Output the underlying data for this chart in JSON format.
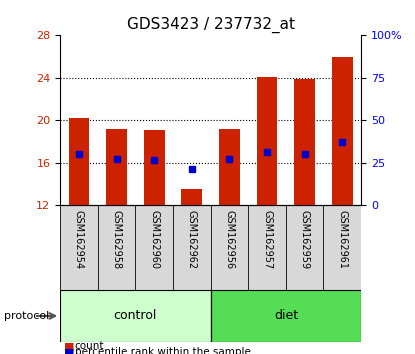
{
  "title": "GDS3423 / 237732_at",
  "samples": [
    "GSM162954",
    "GSM162958",
    "GSM162960",
    "GSM162962",
    "GSM162956",
    "GSM162957",
    "GSM162959",
    "GSM162961"
  ],
  "bar_bottoms": [
    12,
    12,
    12,
    12,
    12,
    12,
    12,
    12
  ],
  "bar_tops": [
    20.2,
    19.2,
    19.1,
    13.5,
    19.2,
    24.1,
    23.9,
    26.0
  ],
  "blue_dots": [
    16.8,
    16.4,
    16.3,
    15.4,
    16.4,
    17.0,
    16.8,
    18.0
  ],
  "groups": [
    {
      "label": "control",
      "indices": [
        0,
        1,
        2,
        3
      ],
      "color": "#ccffcc"
    },
    {
      "label": "diet",
      "indices": [
        4,
        5,
        6,
        7
      ],
      "color": "#55dd55"
    }
  ],
  "ylim": [
    12,
    28
  ],
  "yticks_left": [
    12,
    16,
    20,
    24,
    28
  ],
  "yticks_right": [
    0,
    25,
    50,
    75,
    100
  ],
  "bar_color": "#cc2200",
  "dot_color": "#0000cc",
  "protocol_label": "protocol",
  "legend_items": [
    {
      "label": "count",
      "color": "#cc2200"
    },
    {
      "label": "percentile rank within the sample",
      "color": "#0000cc"
    }
  ],
  "title_fontsize": 11,
  "tick_fontsize": 8,
  "label_fontsize": 8,
  "sample_fontsize": 7,
  "gridline_yticks": [
    16,
    20,
    24
  ]
}
